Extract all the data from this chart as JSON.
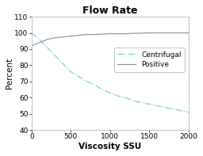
{
  "title": "Flow Rate",
  "xlabel": "Viscosity SSU",
  "ylabel": "Percent",
  "xlim": [
    0,
    2000
  ],
  "ylim": [
    40,
    110
  ],
  "xticks": [
    0,
    500,
    1000,
    1500,
    2000
  ],
  "yticks": [
    40,
    50,
    60,
    70,
    80,
    90,
    100,
    110
  ],
  "centrifugal_x": [
    0,
    100,
    200,
    300,
    400,
    500,
    600,
    700,
    800,
    900,
    1000,
    1100,
    1200,
    1300,
    1400,
    1500,
    1600,
    1700,
    1800,
    1900,
    2000
  ],
  "centrifugal_y": [
    100,
    96,
    91,
    86,
    81,
    76,
    73,
    70,
    68,
    65,
    63,
    61,
    60,
    58,
    57,
    56,
    55,
    54,
    53,
    52,
    51
  ],
  "positive_x": [
    0,
    100,
    200,
    300,
    400,
    500,
    600,
    700,
    800,
    1000,
    1200,
    1500,
    1800,
    2000
  ],
  "positive_y": [
    92,
    94,
    96,
    97,
    97.5,
    98,
    98.5,
    99,
    99,
    99.5,
    99.5,
    100,
    100,
    100
  ],
  "centrifugal_color": "#7ecece",
  "positive_color": "#8899aa",
  "centrifugal_label": "Centrifugal",
  "positive_label": "Positive",
  "bg_color": "#ffffff",
  "plot_bg_color": "#ffffff",
  "title_fontsize": 9,
  "axis_label_fontsize": 7.5,
  "tick_fontsize": 6.5,
  "legend_fontsize": 6.5,
  "linewidth": 0.9
}
